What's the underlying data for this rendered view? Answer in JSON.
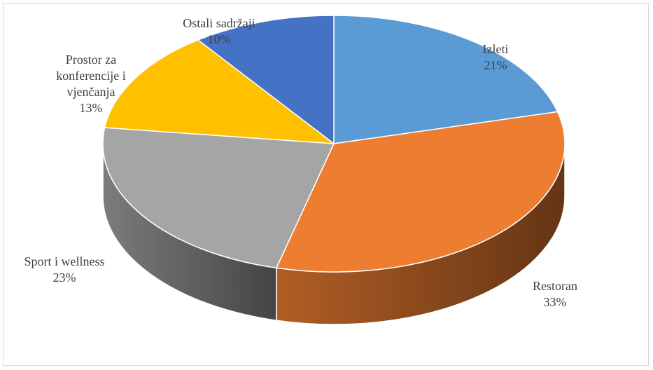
{
  "chart_data": {
    "type": "pie",
    "categories": [
      "Izleti",
      "Restoran",
      "Sport i wellness",
      "Prostor za konferencije i vjenčanja",
      "Ostali sadržaji"
    ],
    "values": [
      21,
      33,
      23,
      13,
      10
    ],
    "value_labels": [
      "21%",
      "33%",
      "23%",
      "13%",
      "10%"
    ],
    "colors": [
      "#5b9bd5",
      "#ed7d31",
      "#a5a5a5",
      "#ffc000",
      "#4472c4"
    ]
  }
}
